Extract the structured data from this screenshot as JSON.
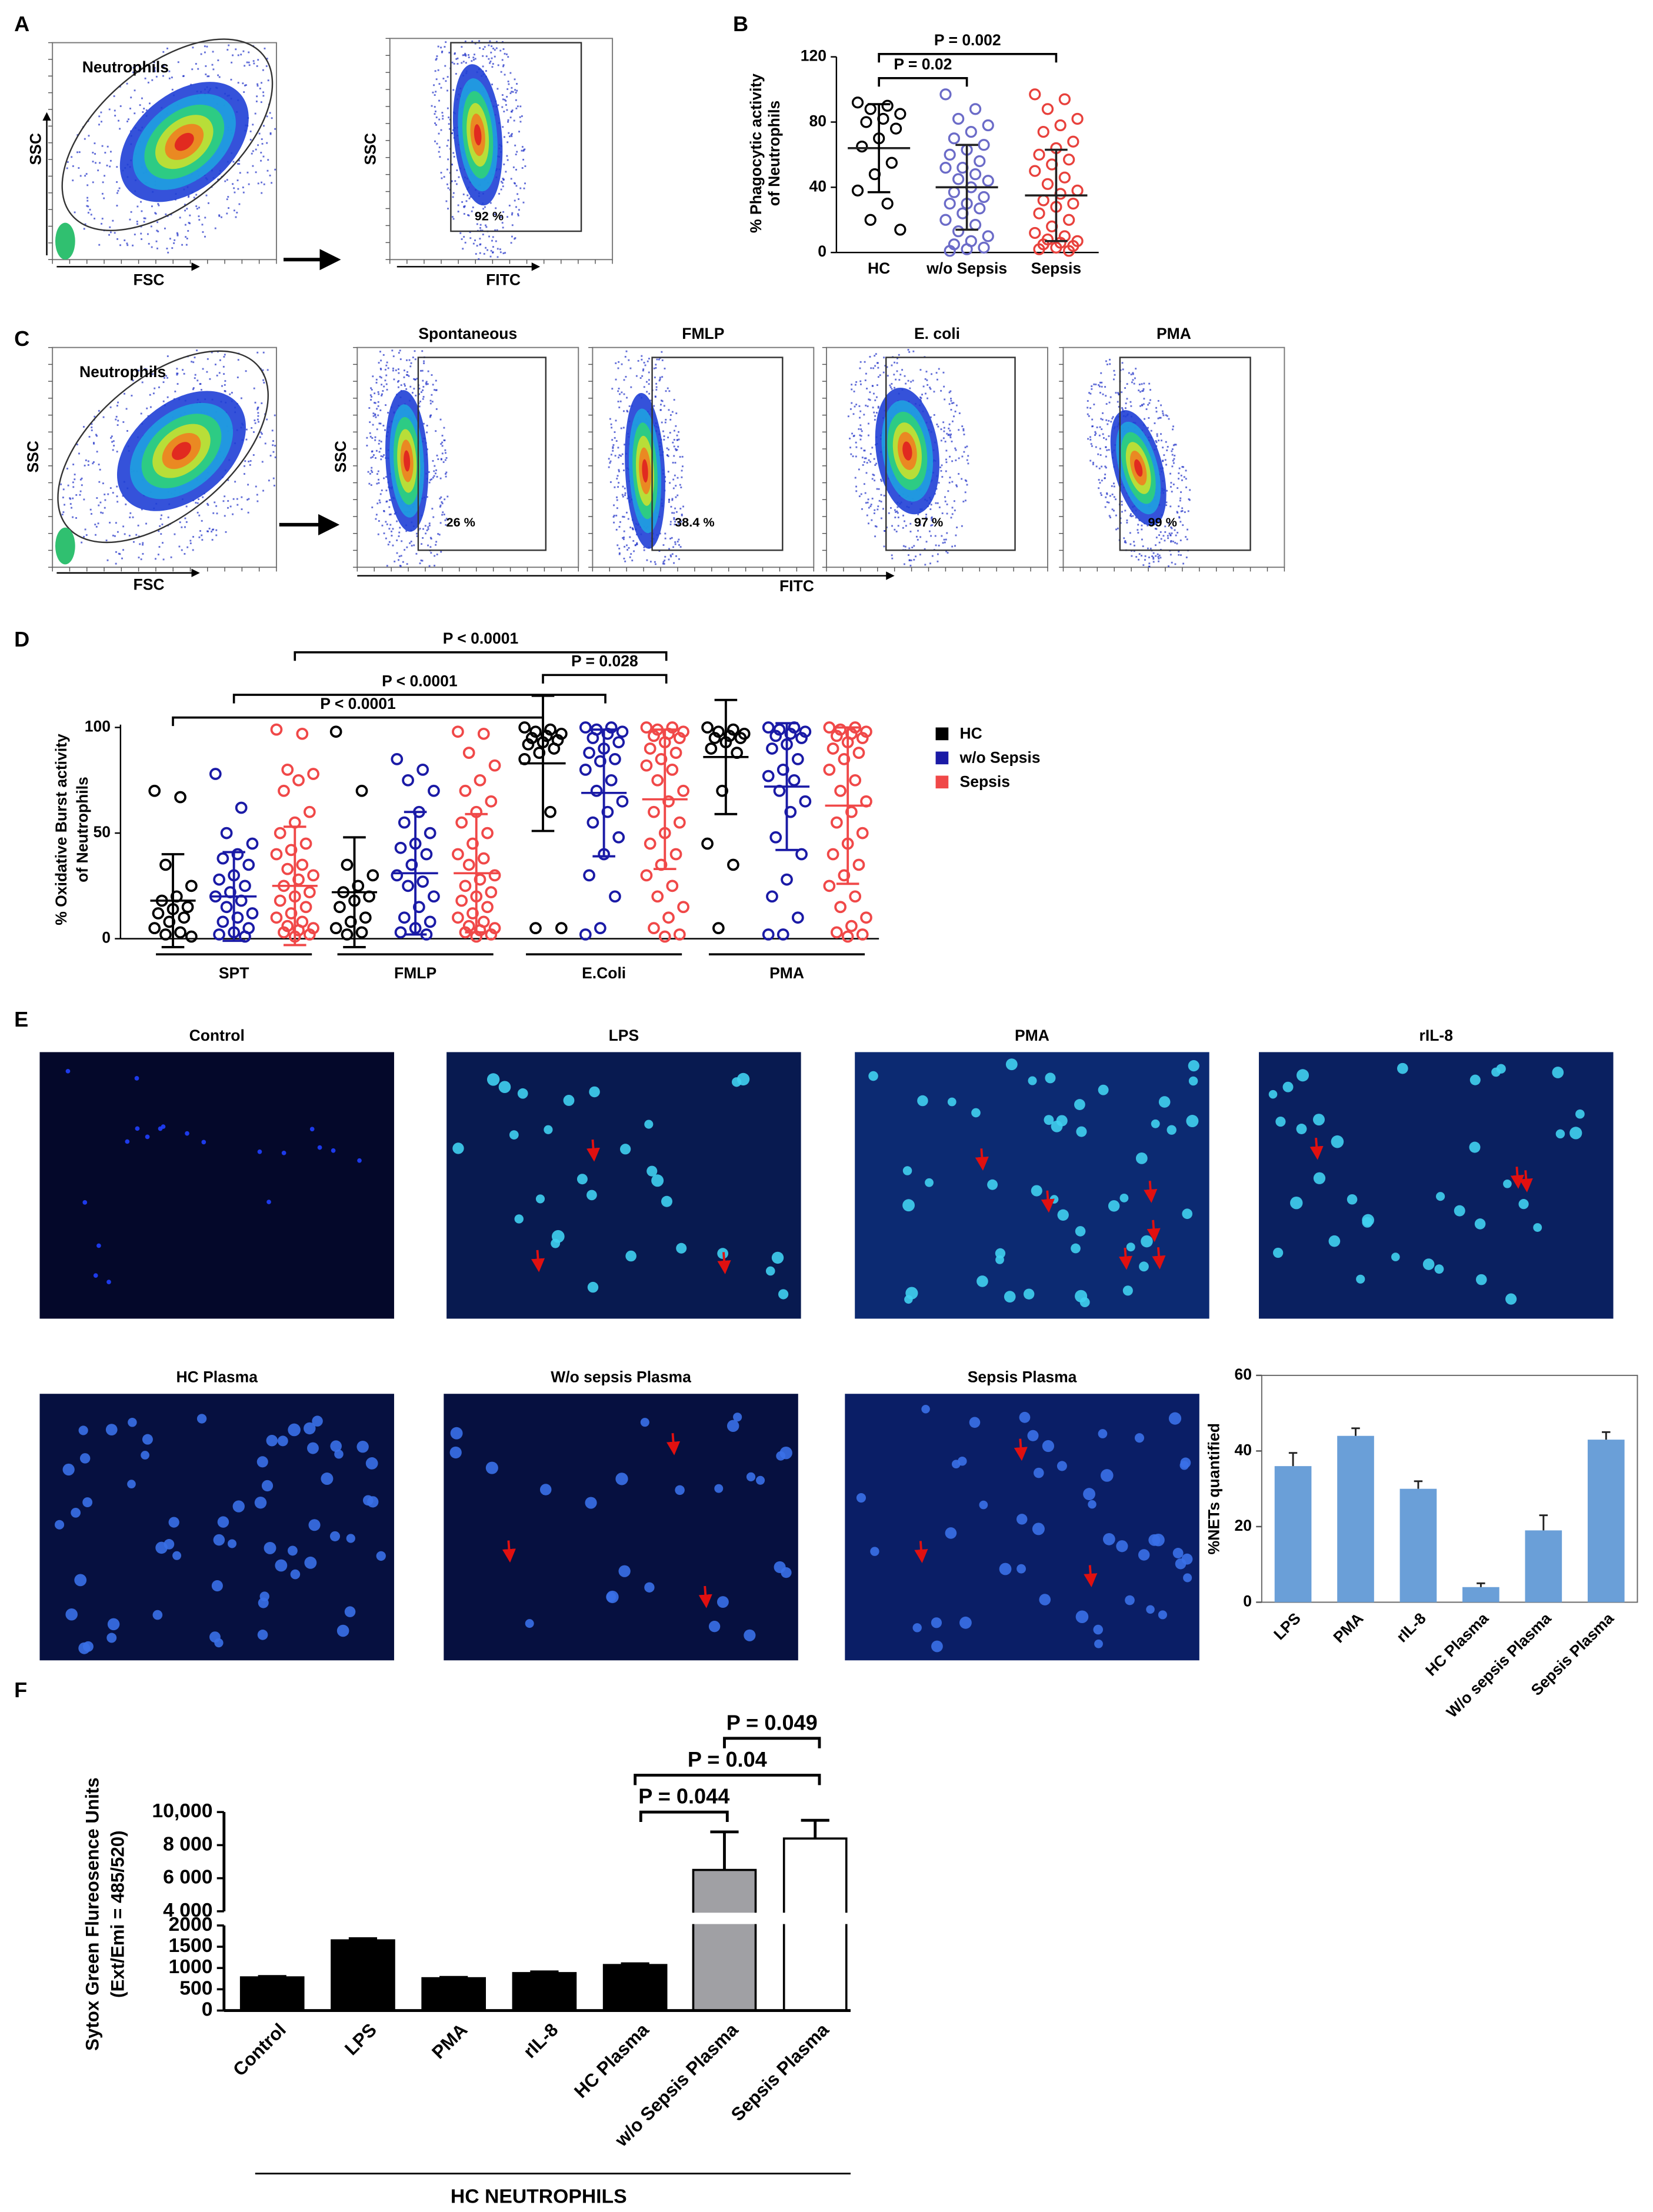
{
  "panel_labels": [
    "A",
    "B",
    "C",
    "D",
    "E",
    "F"
  ],
  "flow_a": {
    "gate_label": "Neutrophils",
    "x_label": "FSC",
    "y_label": "SSC",
    "plot2_x_label": "FITC",
    "plot2_y_label": "SSC",
    "gate_percent": "92 %"
  },
  "flow_c": {
    "gate_label": "Neutrophils",
    "x_label": "FSC",
    "y_label": "SSC",
    "stim_y_label": "SSC",
    "stim_x_label": "FITC",
    "panels": [
      {
        "title": "Spontaneous",
        "gate_percent": "26 %"
      },
      {
        "title": "FMLP",
        "gate_percent": "38.4 %"
      },
      {
        "title": "E. coli",
        "gate_percent": "97 %"
      },
      {
        "title": "PMA",
        "gate_percent": "99 %"
      }
    ]
  },
  "micrographs": [
    {
      "title": "Control"
    },
    {
      "title": "LPS"
    },
    {
      "title": "PMA"
    },
    {
      "title": "rIL-8"
    },
    {
      "title": "HC Plasma"
    },
    {
      "title": "W/o sepsis Plasma"
    },
    {
      "title": "Sepsis Plasma"
    }
  ],
  "chart_data": [
    {
      "type": "dotplot",
      "y_label": [
        "% Phagocytic activity",
        "of Neutrophils"
      ],
      "categories": [
        "HC",
        "w/o Sepsis",
        "Sepsis"
      ],
      "values": [
        64,
        40,
        35
      ],
      "errors": [
        27,
        26,
        28
      ],
      "colors": [
        "#000000",
        "#6b6bc8",
        "#e8413c"
      ],
      "points": [
        [
          92,
          90,
          88,
          85,
          82,
          80,
          76,
          70,
          65,
          55,
          48,
          38,
          30,
          20,
          14
        ],
        [
          97,
          88,
          82,
          78,
          74,
          70,
          66,
          63,
          60,
          56,
          52,
          52,
          48,
          45,
          44,
          40,
          37,
          34,
          30,
          30,
          27,
          24,
          20,
          17,
          13,
          10,
          7,
          5,
          3,
          2,
          1
        ],
        [
          97,
          94,
          88,
          82,
          78,
          74,
          68,
          64,
          60,
          57,
          54,
          50,
          46,
          42,
          38,
          36,
          32,
          30,
          28,
          24,
          20,
          16,
          12,
          10,
          8,
          7,
          6,
          5,
          4,
          3,
          2,
          1
        ]
      ],
      "ylim": [
        0,
        120
      ],
      "yticks": [
        0,
        40,
        80,
        120
      ],
      "annotations": [
        "P = 0.002",
        "P = 0.02"
      ]
    },
    {
      "type": "dotplot_grouped",
      "y_label": [
        "% Oxidative Burst activity",
        "of Neutrophils"
      ],
      "categories": [
        "SPT",
        "FMLP",
        "E.Coli",
        "PMA"
      ],
      "series": [
        {
          "name": "HC",
          "color": "#000000",
          "values": [
            18,
            22,
            83,
            86
          ],
          "errors": [
            22,
            26,
            32,
            27
          ],
          "points": [
            [
              70,
              67,
              35,
              25,
              20,
              18,
              15,
              14,
              12,
              10,
              8,
              5,
              3,
              2,
              1
            ],
            [
              98,
              70,
              35,
              30,
              25,
              22,
              20,
              18,
              15,
              10,
              8,
              5,
              3,
              2
            ],
            [
              100,
              99,
              98,
              97,
              96,
              95,
              94,
              93,
              92,
              90,
              88,
              85,
              60,
              5,
              5
            ],
            [
              100,
              99,
              98,
              97,
              96,
              95,
              95,
              93,
              90,
              88,
              70,
              45,
              35,
              5
            ]
          ]
        },
        {
          "name": "w/o Sepsis",
          "color": "#1a1aa6",
          "values": [
            20,
            31,
            69,
            72
          ],
          "errors": [
            21,
            29,
            30,
            30
          ],
          "points": [
            [
              78,
              62,
              50,
              45,
              40,
              38,
              35,
              30,
              28,
              25,
              22,
              20,
              18,
              15,
              12,
              10,
              8,
              5,
              3,
              2,
              1
            ],
            [
              85,
              80,
              75,
              70,
              60,
              55,
              50,
              45,
              43,
              40,
              35,
              30,
              27,
              25,
              20,
              15,
              10,
              8,
              5,
              3,
              2
            ],
            [
              100,
              100,
              99,
              98,
              97,
              95,
              93,
              90,
              88,
              85,
              84,
              80,
              75,
              70,
              65,
              60,
              55,
              48,
              40,
              30,
              20,
              5,
              2
            ],
            [
              100,
              100,
              99,
              98,
              97,
              96,
              95,
              92,
              90,
              85,
              80,
              77,
              75,
              70,
              65,
              60,
              48,
              40,
              28,
              20,
              10,
              2,
              2
            ]
          ]
        },
        {
          "name": "Sepsis",
          "color": "#f04848",
          "values": [
            25,
            31,
            66,
            63
          ],
          "errors": [
            28,
            28,
            33,
            37
          ],
          "points": [
            [
              99,
              97,
              80,
              78,
              75,
              70,
              60,
              55,
              50,
              45,
              42,
              40,
              35,
              33,
              30,
              28,
              25,
              22,
              20,
              18,
              15,
              12,
              10,
              8,
              6,
              5,
              4,
              3,
              2,
              1
            ],
            [
              98,
              97,
              88,
              82,
              75,
              70,
              65,
              60,
              55,
              50,
              45,
              40,
              38,
              35,
              30,
              28,
              25,
              22,
              20,
              18,
              15,
              12,
              10,
              8,
              6,
              5,
              4,
              3,
              2,
              1
            ],
            [
              100,
              100,
              99,
              98,
              97,
              96,
              95,
              93,
              90,
              88,
              85,
              82,
              80,
              75,
              70,
              65,
              60,
              55,
              50,
              45,
              40,
              35,
              30,
              25,
              20,
              15,
              10,
              5,
              2,
              1
            ],
            [
              100,
              100,
              99,
              98,
              97,
              96,
              95,
              93,
              90,
              88,
              85,
              80,
              75,
              70,
              65,
              60,
              55,
              50,
              45,
              40,
              35,
              30,
              25,
              20,
              15,
              10,
              6,
              3,
              2,
              1
            ]
          ]
        }
      ],
      "ylim": [
        0,
        100
      ],
      "yticks": [
        0,
        50,
        100
      ],
      "annotations": [
        "P < 0.0001",
        "P = 0.028",
        "P < 0.0001",
        "P < 0.0001"
      ]
    },
    {
      "type": "bar",
      "y_label": "%NETs quantified",
      "categories": [
        "LPS",
        "PMA",
        "rIL-8",
        "HC Plasma",
        "W/o sepsis Plasma",
        "Sepsis Plasma"
      ],
      "values": [
        36,
        44,
        30,
        4,
        19,
        43
      ],
      "errors": [
        3.5,
        2,
        2,
        1,
        4,
        2
      ],
      "color": "#6a9fd8",
      "ylim": [
        0,
        60
      ],
      "yticks": [
        0,
        20,
        40,
        60
      ]
    },
    {
      "type": "bar_broken",
      "y_label": [
        "Sytox Green Flureosence Units",
        "(Ext/Emi = 485/520)"
      ],
      "categories": [
        "Control",
        "LPS",
        "PMA",
        "rIL-8",
        "HC Plasma",
        "w/o Sepsis Plasma",
        "Sepsis Plasma"
      ],
      "values": [
        780,
        1650,
        760,
        880,
        1070,
        6500,
        8400
      ],
      "errors": [
        20,
        40,
        20,
        30,
        30,
        2300,
        1100
      ],
      "colors": [
        "#000000",
        "#000000",
        "#000000",
        "#000000",
        "#000000",
        "#a0a0a4",
        "#ffffff"
      ],
      "ylim": [
        0,
        10000
      ],
      "ybreak": [
        2000,
        4000
      ],
      "yticks": [
        0,
        500,
        1000,
        1500,
        2000,
        {
          "value": 4000,
          "label": "4 000"
        },
        {
          "value": 6000,
          "label": "6 000"
        },
        {
          "value": 8000,
          "label": "8 000"
        },
        {
          "value": 10000,
          "label": "10,000"
        }
      ],
      "x_group_label": "HC NEUTROPHILS",
      "annotations": [
        "P = 0.049",
        "P = 0.04",
        "P = 0.044"
      ]
    }
  ]
}
